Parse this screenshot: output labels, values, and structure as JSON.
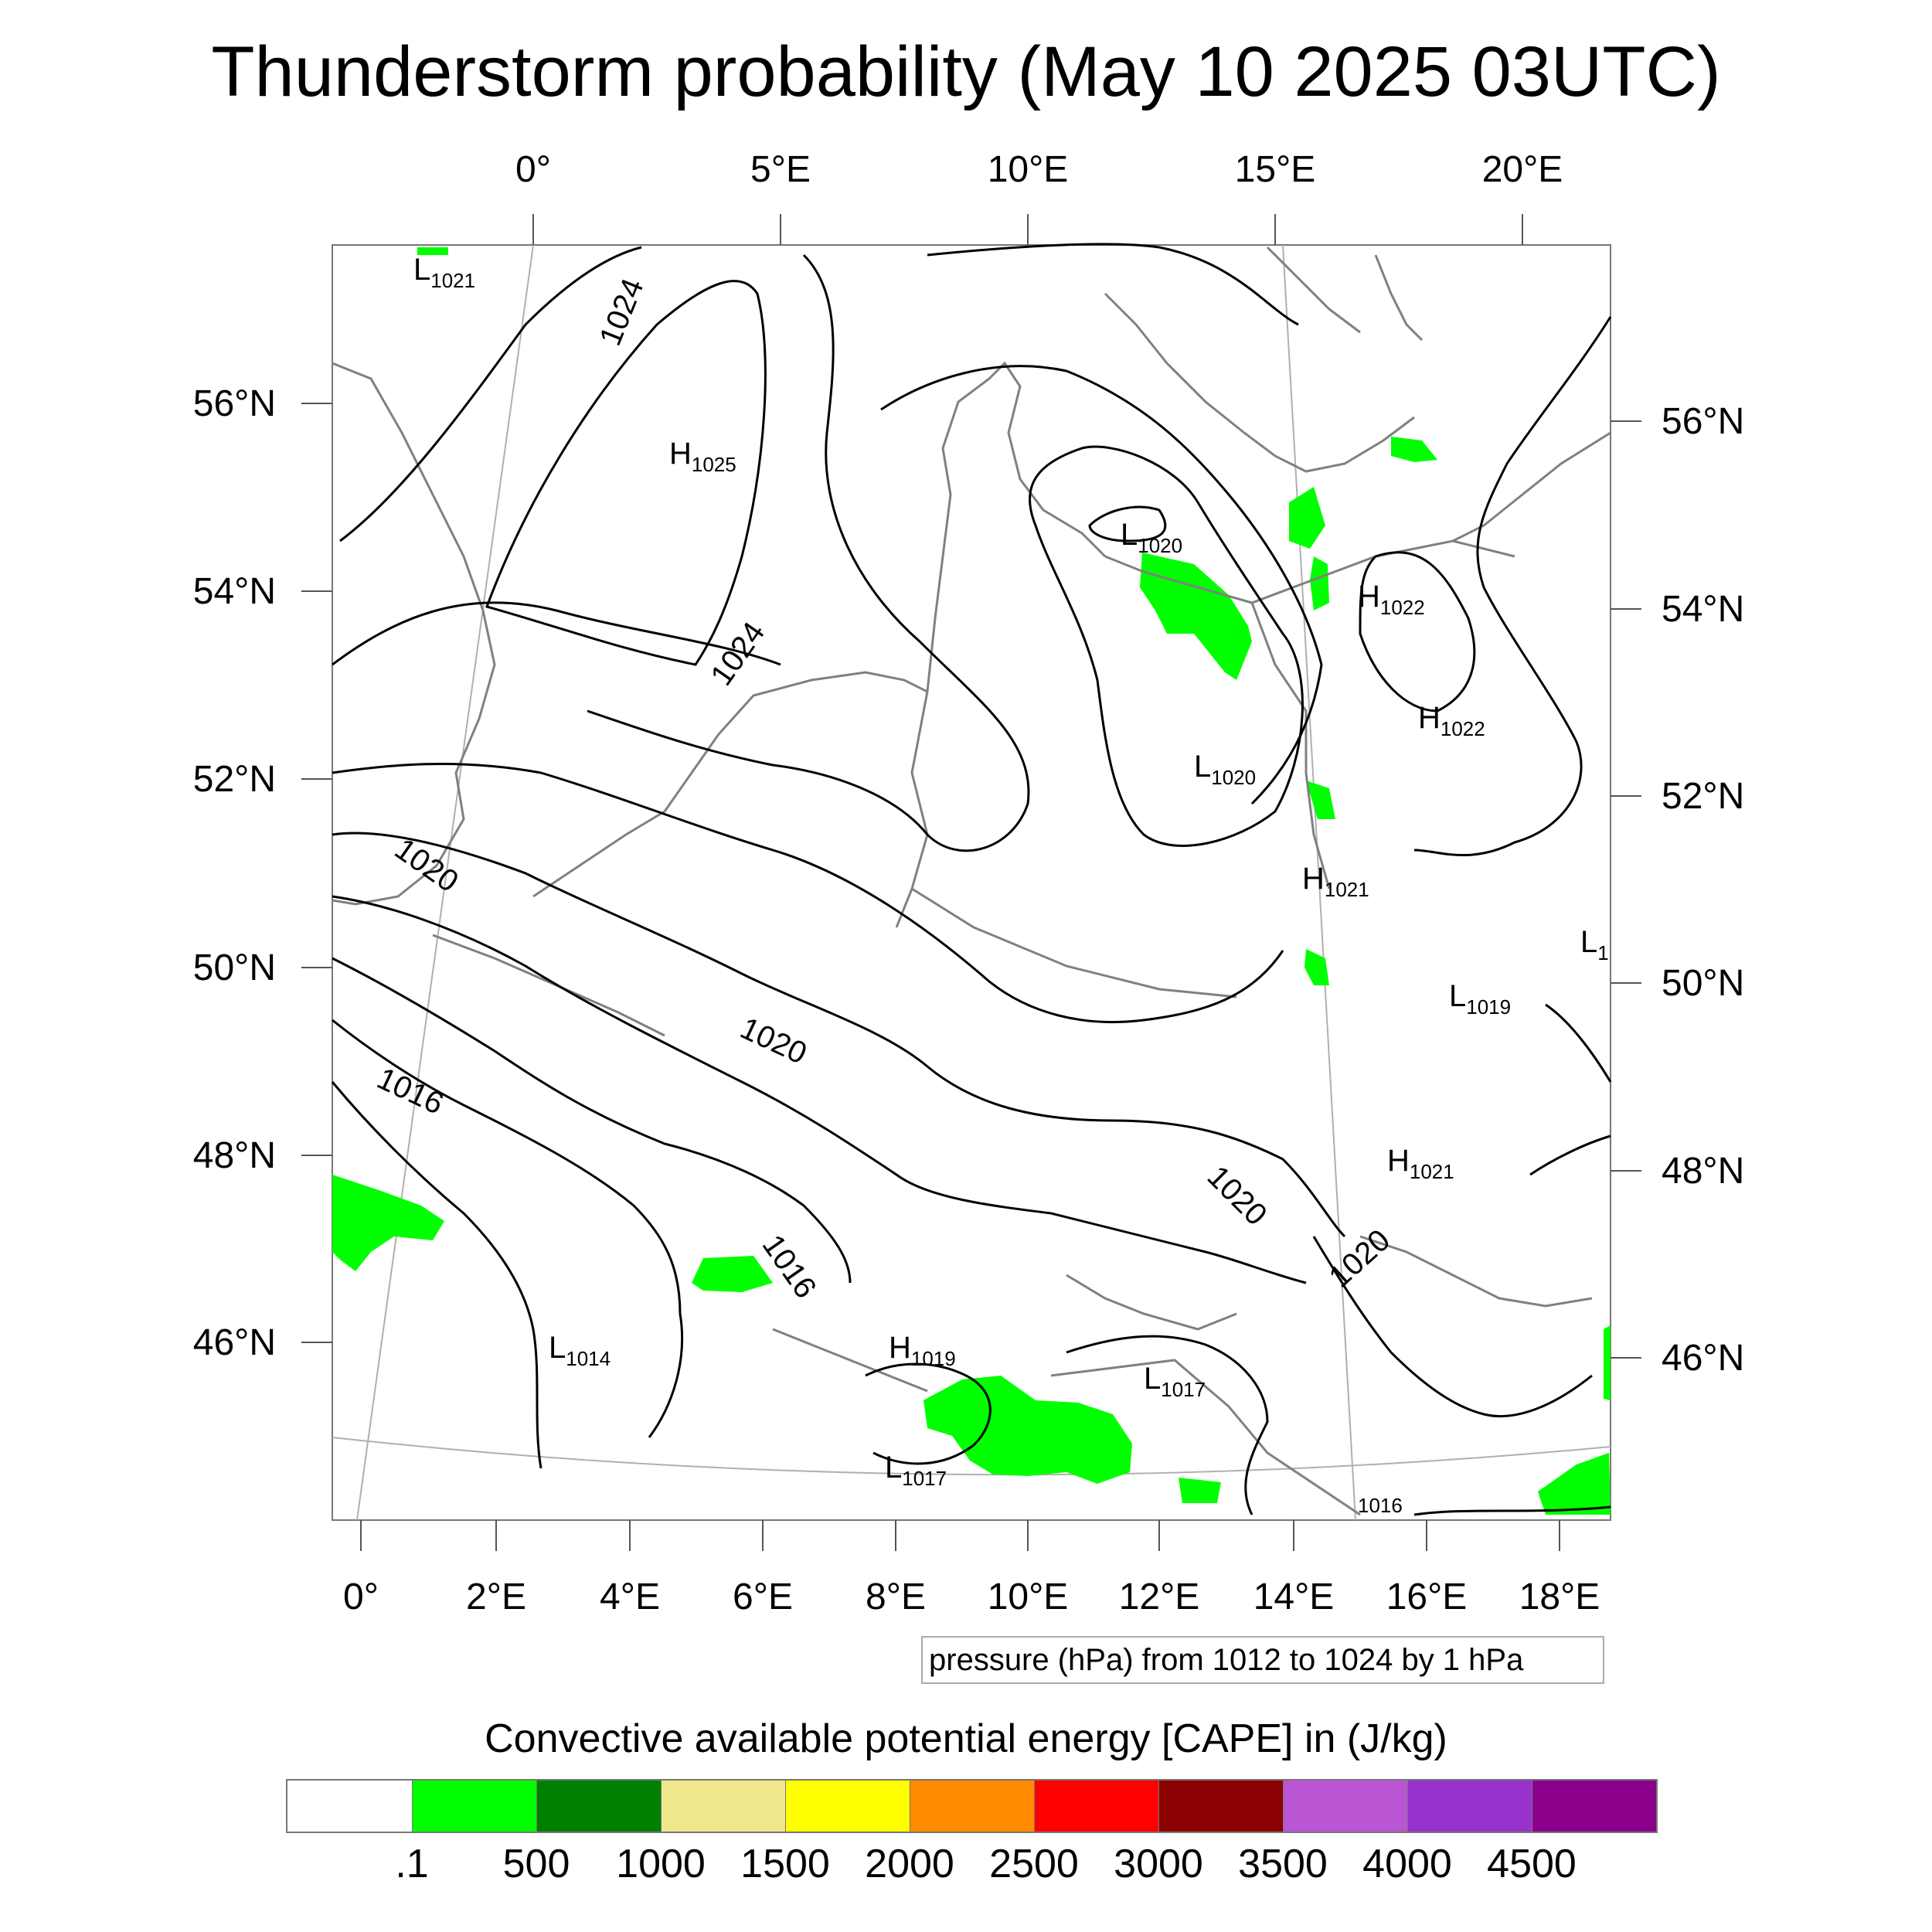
{
  "title": "Thunderstorm probability (May 10 2025 03UTC)",
  "axes": {
    "top_lon": [
      "0°",
      "5°E",
      "10°E",
      "15°E",
      "20°E"
    ],
    "bottom_lon": [
      "0°",
      "2°E",
      "4°E",
      "6°E",
      "8°E",
      "10°E",
      "12°E",
      "14°E",
      "16°E",
      "18°E"
    ],
    "left_lat": [
      "56°N",
      "54°N",
      "52°N",
      "50°N",
      "48°N",
      "46°N"
    ],
    "right_lat": [
      "56°N",
      "54°N",
      "52°N",
      "50°N",
      "48°N",
      "46°N"
    ]
  },
  "contour_labels": [
    "1024",
    "1024",
    "1020",
    "1020",
    "1016",
    "1020",
    "1020",
    "1016"
  ],
  "pressure_centers": [
    {
      "type": "L",
      "value": "1021"
    },
    {
      "type": "H",
      "value": "1025"
    },
    {
      "type": "L",
      "value": "1020"
    },
    {
      "type": "H",
      "value": "1022"
    },
    {
      "type": "H",
      "value": "1022"
    },
    {
      "type": "L",
      "value": "1020"
    },
    {
      "type": "H",
      "value": "1021"
    },
    {
      "type": "L",
      "value": "1"
    },
    {
      "type": "L",
      "value": "1019"
    },
    {
      "type": "H",
      "value": "1021"
    },
    {
      "type": "L",
      "value": "1014"
    },
    {
      "type": "H",
      "value": "1019"
    },
    {
      "type": "L",
      "value": "1017"
    },
    {
      "type": "L",
      "value": "1017"
    },
    {
      "type": "",
      "value": "1016"
    }
  ],
  "info_box": "pressure (hPa) from 1012 to 1024 by 1 hPa",
  "colorbar": {
    "title": "Convective available potential energy [CAPE] in (J/kg)",
    "colors": [
      "#ffffff",
      "#00ff00",
      "#008000",
      "#f0e68c",
      "#ffff00",
      "#ff8c00",
      "#ff0000",
      "#8b0000",
      "#ba55d3",
      "#9932cc",
      "#8b008b"
    ],
    "labels": [
      ".1",
      "500",
      "1000",
      "1500",
      "2000",
      "2500",
      "3000",
      "3500",
      "4000",
      "4500"
    ]
  },
  "colors": {
    "isobar": "#000000",
    "coastline": "#808080",
    "cape_low": "#00ff00",
    "graticule": "#b0b0b0"
  }
}
